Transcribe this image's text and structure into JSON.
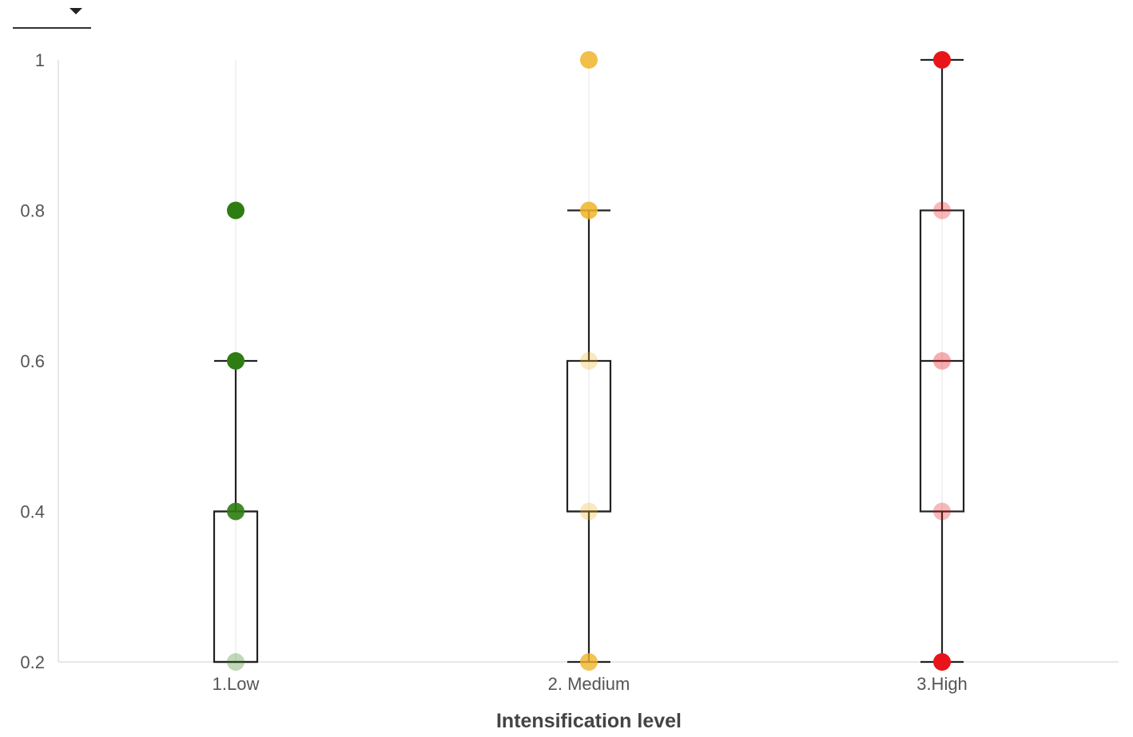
{
  "dropdown": {
    "value": ""
  },
  "chart_data": {
    "type": "box",
    "title": "",
    "xlabel": "Intensification level",
    "ylabel": "",
    "ylim": [
      0.2,
      1.0
    ],
    "yticks": [
      "0.2",
      "0.4",
      "0.6",
      "0.8",
      "1"
    ],
    "categories": [
      "1.Low",
      "2. Medium",
      "3.High"
    ],
    "boxes": [
      {
        "category": "1.Low",
        "whisker_low": 0.2,
        "q1": 0.2,
        "median": 0.4,
        "q3": 0.4,
        "whisker_high": 0.6
      },
      {
        "category": "2. Medium",
        "whisker_low": 0.2,
        "q1": 0.4,
        "median": 0.4,
        "q3": 0.6,
        "whisker_high": 0.8
      },
      {
        "category": "3.High",
        "whisker_low": 0.2,
        "q1": 0.4,
        "median": 0.6,
        "q3": 0.8,
        "whisker_high": 1.0
      }
    ],
    "points": [
      {
        "category": "1.Low",
        "values": [
          0.2,
          0.4,
          0.6,
          0.8
        ]
      },
      {
        "category": "2. Medium",
        "values": [
          0.2,
          0.4,
          0.6,
          0.8,
          1.0
        ]
      },
      {
        "category": "3.High",
        "values": [
          0.2,
          0.4,
          0.6,
          0.8,
          1.0
        ]
      }
    ],
    "colors": {
      "1.Low": "#2e7d12",
      "2. Medium": "#f0b429",
      "3.High": "#e8141a"
    },
    "grid": {
      "vertical": true,
      "horizontal": false
    },
    "legend": "none"
  }
}
